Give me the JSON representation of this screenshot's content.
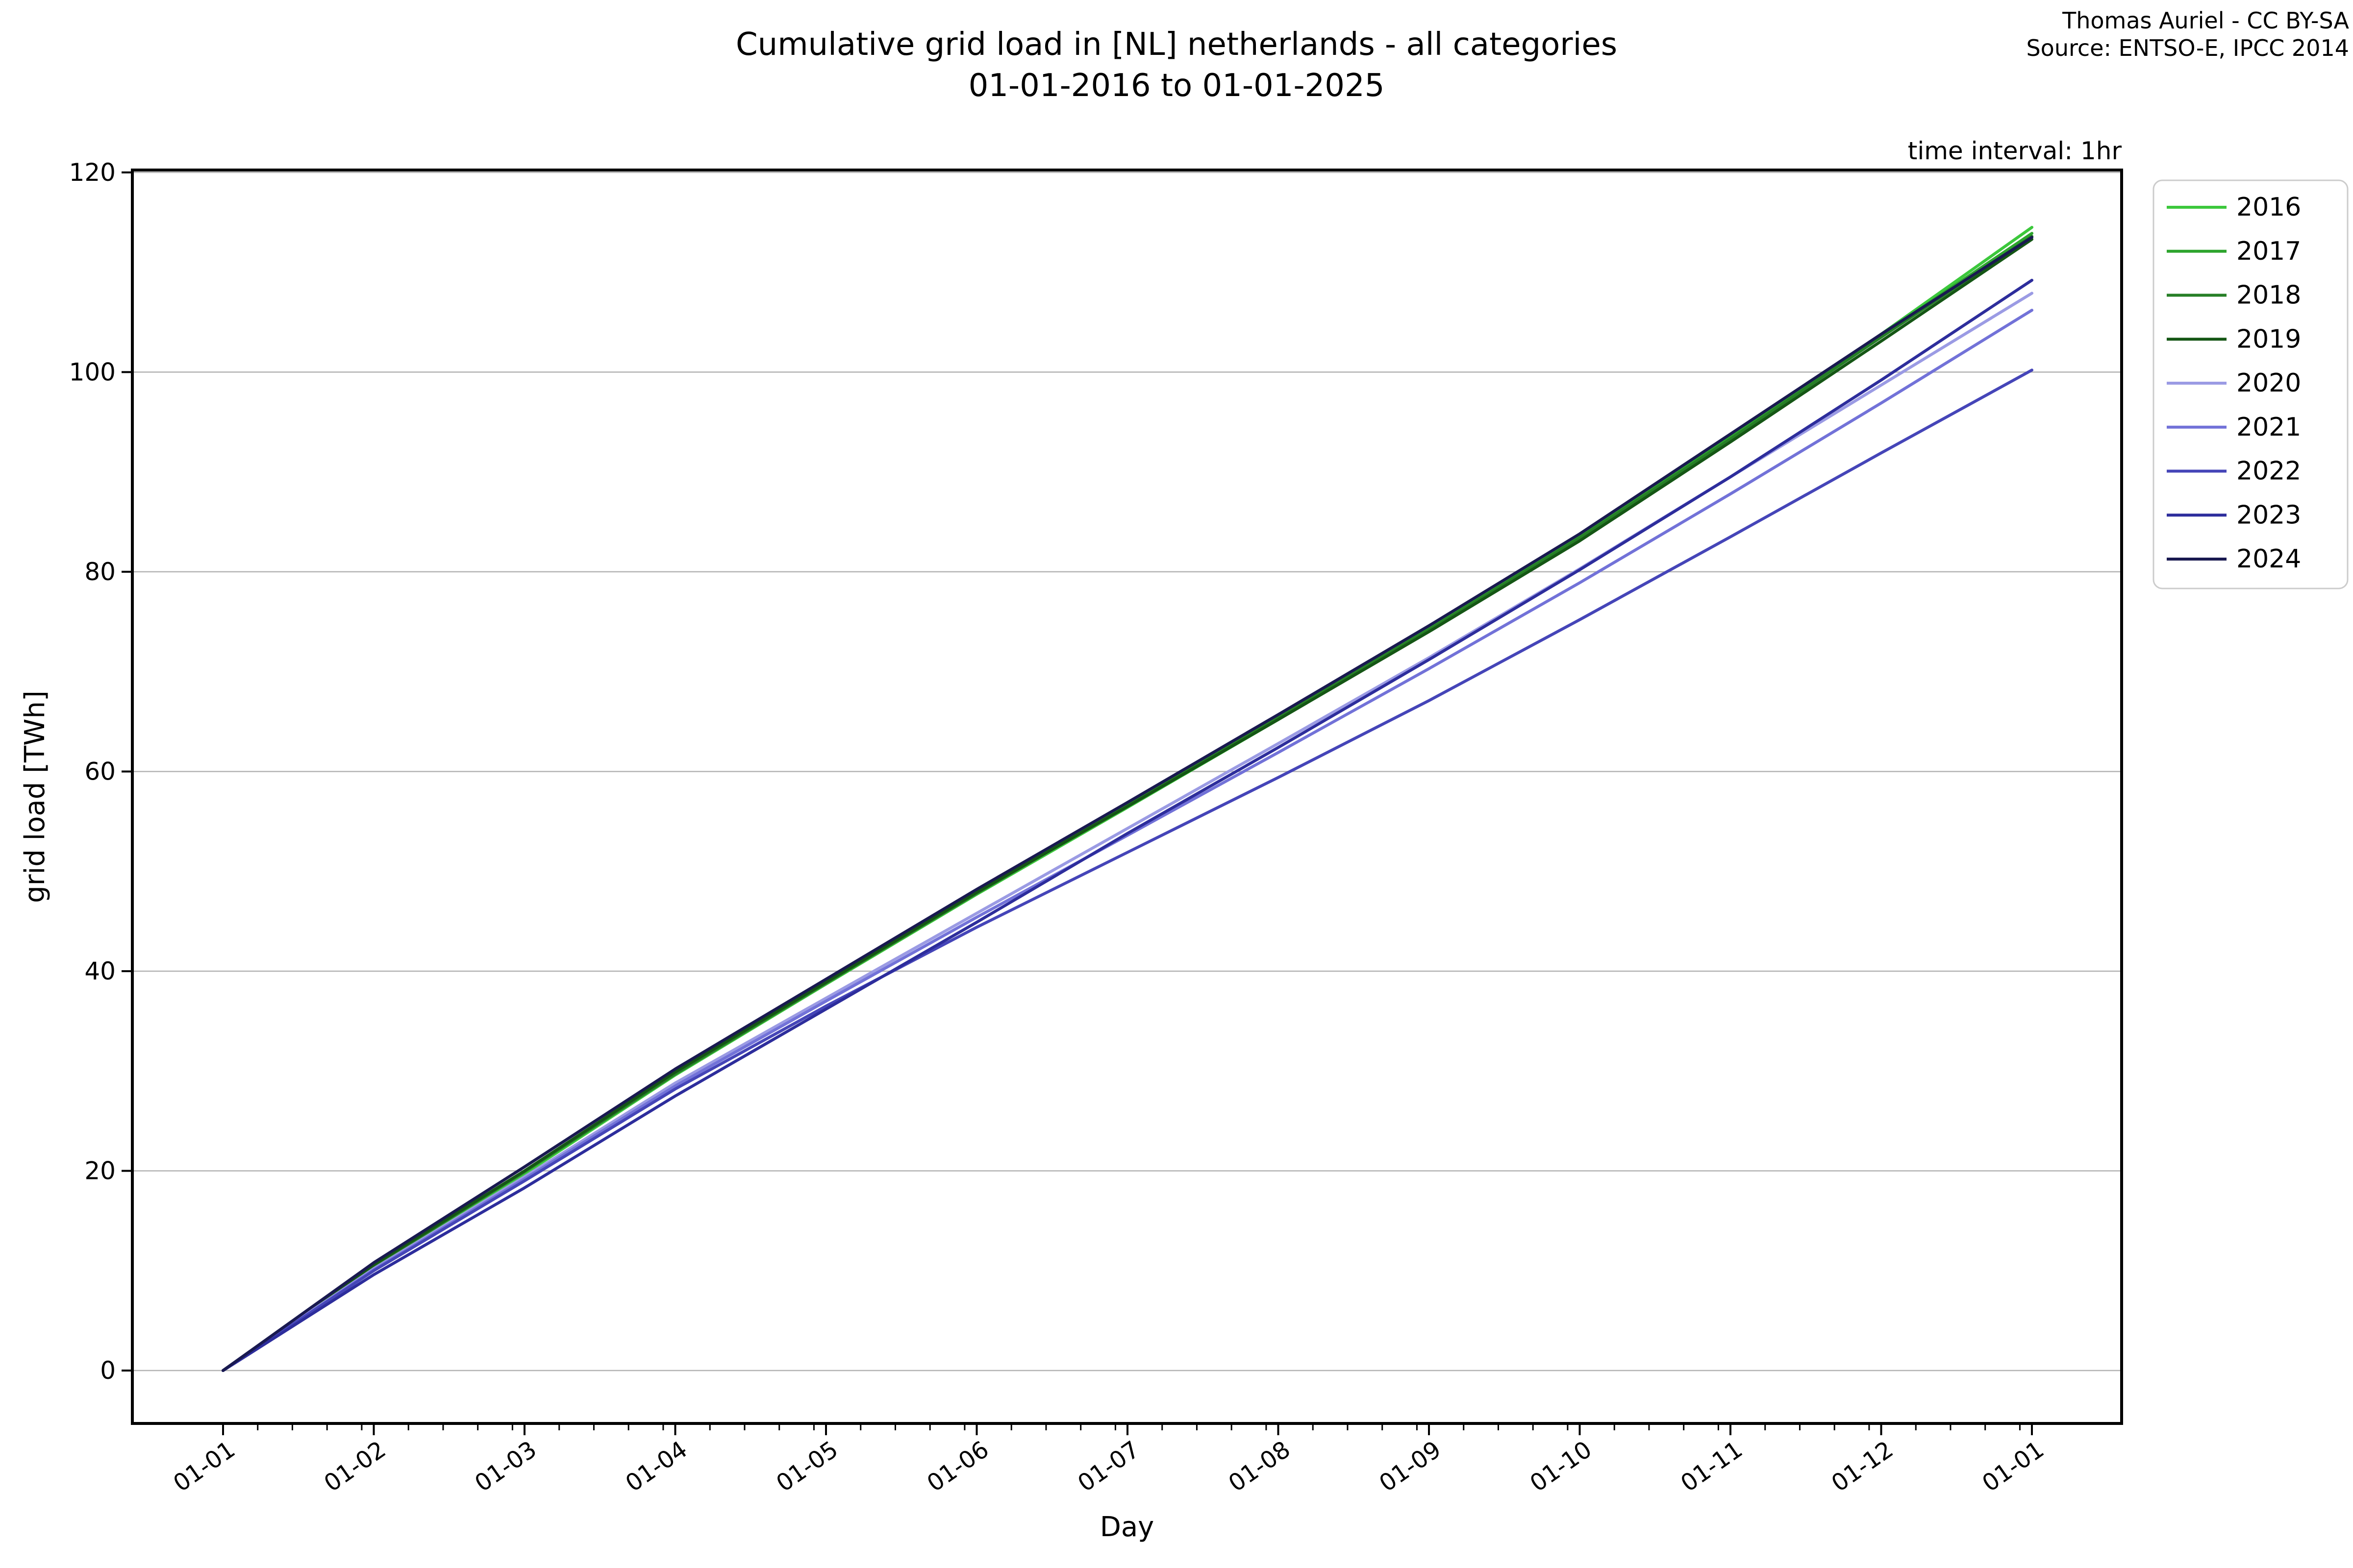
{
  "header": {
    "title_line1": "Cumulative grid load in [NL] netherlands - all categories",
    "title_line2": "01-01-2016 to 01-01-2025",
    "credit_line1": "Thomas Auriel - CC BY-SA",
    "credit_line2": "Source: ENTSO-E, IPCC 2014",
    "note": "time interval: 1hr"
  },
  "chart_data": {
    "type": "line",
    "title": "Cumulative grid load in [NL] netherlands - all categories 01-01-2016 to 01-01-2025",
    "xlabel": "Day",
    "ylabel": "grid load [TWh]",
    "x_tick_labels": [
      "01-01",
      "01-02",
      "01-03",
      "01-04",
      "01-05",
      "01-06",
      "01-07",
      "01-08",
      "01-09",
      "01-10",
      "01-11",
      "01-12",
      "01-01"
    ],
    "x_months": [
      0,
      1,
      2,
      3,
      4,
      5,
      6,
      7,
      8,
      9,
      10,
      11,
      12
    ],
    "y_ticks": [
      0,
      20,
      40,
      60,
      80,
      100,
      120
    ],
    "ylim": [
      -5.3,
      120.25
    ],
    "xlim_months": [
      -0.6,
      12.6
    ],
    "grid": "horizontal",
    "legend_position": "outside upper right",
    "series": [
      {
        "name": "2016",
        "color": "#3cc83c",
        "values": [
          0,
          10.4,
          19.7,
          29.6,
          38.7,
          47.7,
          56.4,
          65.2,
          74.1,
          83.4,
          93.5,
          103.8,
          114.5
        ]
      },
      {
        "name": "2017",
        "color": "#2da42d",
        "values": [
          0,
          10.5,
          19.9,
          29.8,
          38.9,
          47.9,
          56.7,
          65.5,
          74.4,
          83.6,
          93.5,
          103.7,
          113.9
        ]
      },
      {
        "name": "2018",
        "color": "#267f26",
        "values": [
          0,
          10.5,
          19.9,
          29.7,
          38.8,
          47.8,
          56.6,
          65.4,
          74.2,
          83.4,
          93.3,
          103.5,
          113.6
        ]
      },
      {
        "name": "2019",
        "color": "#155615",
        "values": [
          0,
          10.6,
          20.0,
          29.9,
          38.9,
          47.9,
          56.5,
          65.2,
          74.0,
          83.1,
          93.0,
          103.1,
          113.3
        ]
      },
      {
        "name": "2020",
        "color": "#9b9be4",
        "values": [
          0,
          10.2,
          19.4,
          28.8,
          37.3,
          45.8,
          54.3,
          62.8,
          71.4,
          80.3,
          89.5,
          98.7,
          107.9
        ]
      },
      {
        "name": "2021",
        "color": "#7272d8",
        "values": [
          0,
          10.1,
          19.2,
          28.5,
          37.0,
          45.4,
          53.6,
          61.9,
          70.3,
          78.9,
          87.8,
          96.9,
          106.2
        ]
      },
      {
        "name": "2022",
        "color": "#4545b8",
        "values": [
          0,
          10.0,
          19.0,
          28.2,
          36.5,
          44.4,
          51.9,
          59.4,
          67.1,
          75.2,
          83.5,
          91.9,
          100.2
        ]
      },
      {
        "name": "2023",
        "color": "#2d2d9c",
        "values": [
          0,
          9.6,
          18.3,
          27.5,
          36.2,
          44.9,
          53.8,
          62.4,
          71.2,
          80.2,
          89.5,
          99.2,
          109.2
        ]
      },
      {
        "name": "2024",
        "color": "#191950",
        "values": [
          0,
          10.8,
          20.4,
          30.2,
          39.2,
          48.2,
          56.9,
          65.7,
          74.6,
          83.8,
          93.8,
          103.8,
          113.5
        ]
      }
    ]
  },
  "style_colors": {
    "grid_line": "#b3b3b3",
    "axis": "#000000",
    "legend_border": "#cccccc",
    "background": "#ffffff"
  }
}
